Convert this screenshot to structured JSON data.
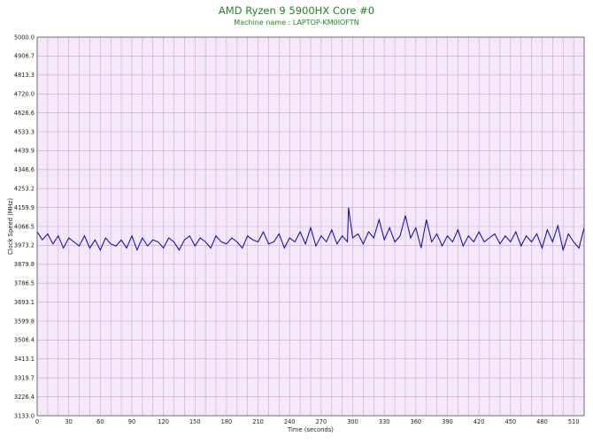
{
  "chart_data": {
    "type": "line",
    "title": "AMD Ryzen 9 5900HX Core #0",
    "subtitle": "Machine name : LAPTOP-KM0IOFTN",
    "xlabel": "Time (seconds)",
    "ylabel": "Clock Speed (MHz)",
    "xlim": [
      0,
      520
    ],
    "ylim": [
      3133.0,
      5000.0
    ],
    "x_ticks": [
      "0",
      "30",
      "60",
      "90",
      "120",
      "150",
      "180",
      "210",
      "240",
      "270",
      "300",
      "330",
      "360",
      "390",
      "420",
      "450",
      "480",
      "510"
    ],
    "y_ticks": [
      "5000.0",
      "4906.7",
      "4813.3",
      "4720.0",
      "4626.6",
      "4533.3",
      "4439.9",
      "4346.6",
      "4253.2",
      "4159.9",
      "4066.5",
      "3973.2",
      "3879.8",
      "3786.5",
      "3693.1",
      "3599.8",
      "3506.4",
      "3413.1",
      "3319.7",
      "3226.4",
      "3133.0"
    ],
    "grid": true,
    "background_color": "#f6e8fb",
    "grid_color": "#c9a6d2",
    "line_color": "#0000cc",
    "title_color": "#1f8a1f",
    "series": [
      {
        "name": "",
        "x": [
          0,
          5,
          10,
          15,
          20,
          25,
          30,
          35,
          40,
          45,
          50,
          55,
          60,
          65,
          70,
          75,
          80,
          85,
          90,
          95,
          100,
          105,
          110,
          115,
          120,
          125,
          130,
          135,
          140,
          145,
          150,
          155,
          160,
          165,
          170,
          175,
          180,
          185,
          190,
          195,
          200,
          205,
          210,
          215,
          220,
          225,
          230,
          235,
          240,
          245,
          250,
          255,
          260,
          265,
          270,
          275,
          280,
          285,
          290,
          295,
          296,
          300,
          305,
          310,
          315,
          320,
          325,
          330,
          335,
          340,
          345,
          350,
          355,
          360,
          365,
          370,
          375,
          380,
          385,
          390,
          395,
          400,
          405,
          410,
          415,
          420,
          425,
          430,
          435,
          440,
          445,
          450,
          455,
          460,
          465,
          470,
          475,
          480,
          485,
          490,
          495,
          500,
          505,
          510,
          515,
          520
        ],
        "y": [
          4040,
          4000,
          4030,
          3980,
          4020,
          3960,
          4010,
          3990,
          3970,
          4020,
          3960,
          4000,
          3950,
          4010,
          3980,
          3970,
          4000,
          3960,
          4020,
          3950,
          4010,
          3970,
          4000,
          3990,
          3960,
          4010,
          3990,
          3950,
          4000,
          4020,
          3970,
          4010,
          3990,
          3960,
          4020,
          3990,
          3980,
          4010,
          3990,
          3960,
          4020,
          4000,
          3990,
          4040,
          3980,
          3990,
          4030,
          3960,
          4010,
          3990,
          4040,
          3980,
          4060,
          3970,
          4020,
          3990,
          4050,
          3980,
          4020,
          3990,
          4160,
          4010,
          4030,
          3980,
          4040,
          4010,
          4100,
          4000,
          4060,
          3990,
          4020,
          4120,
          4010,
          4060,
          3960,
          4100,
          3990,
          4030,
          3970,
          4020,
          3990,
          4050,
          3970,
          4020,
          3990,
          4040,
          3990,
          4010,
          4030,
          3980,
          4020,
          3990,
          4040,
          3970,
          4020,
          3990,
          4030,
          3960,
          4050,
          3990,
          4070,
          3950,
          4030,
          3990,
          3960,
          4060
        ]
      }
    ]
  }
}
